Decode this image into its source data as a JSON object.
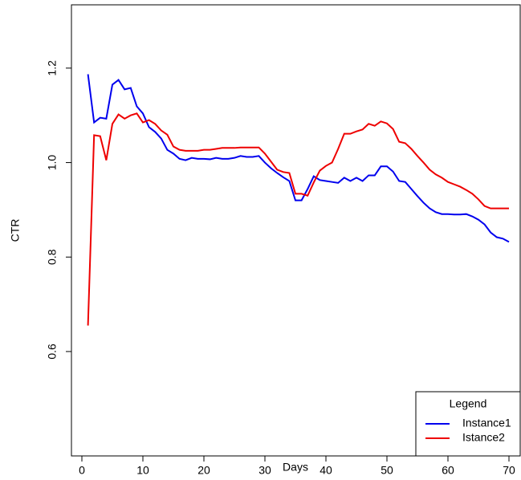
{
  "chart_data": {
    "type": "line",
    "xlabel": "Days",
    "ylabel": "CTR",
    "x": [
      1,
      2,
      3,
      4,
      5,
      6,
      7,
      8,
      9,
      10,
      11,
      12,
      13,
      14,
      15,
      16,
      17,
      18,
      19,
      20,
      21,
      22,
      23,
      24,
      25,
      26,
      27,
      28,
      29,
      30,
      31,
      32,
      33,
      34,
      35,
      36,
      37,
      38,
      39,
      40,
      41,
      42,
      43,
      44,
      45,
      46,
      47,
      48,
      49,
      50,
      51,
      52,
      53,
      54,
      55,
      56,
      57,
      58,
      59,
      60,
      61,
      62,
      63,
      64,
      65,
      66,
      67,
      68,
      69,
      70
    ],
    "series": [
      {
        "name": "Instance1",
        "color": "#0000ee",
        "values": [
          1.187,
          1.085,
          1.095,
          1.093,
          1.165,
          1.175,
          1.155,
          1.158,
          1.119,
          1.104,
          1.075,
          1.065,
          1.051,
          1.027,
          1.019,
          1.008,
          1.005,
          1.01,
          1.008,
          1.008,
          1.007,
          1.01,
          1.008,
          1.008,
          1.01,
          1.014,
          1.012,
          1.012,
          1.014,
          1.0,
          0.988,
          0.978,
          0.969,
          0.961,
          0.92,
          0.92,
          0.944,
          0.971,
          0.963,
          0.961,
          0.959,
          0.957,
          0.968,
          0.961,
          0.968,
          0.961,
          0.973,
          0.973,
          0.992,
          0.992,
          0.981,
          0.961,
          0.959,
          0.944,
          0.929,
          0.915,
          0.903,
          0.895,
          0.891,
          0.891,
          0.89,
          0.89,
          0.891,
          0.886,
          0.879,
          0.869,
          0.852,
          0.842,
          0.839,
          0.832
        ]
      },
      {
        "name": "Istance2",
        "color": "#ee0000",
        "values": [
          0.655,
          1.058,
          1.056,
          1.005,
          1.082,
          1.102,
          1.093,
          1.1,
          1.104,
          1.085,
          1.09,
          1.082,
          1.068,
          1.059,
          1.034,
          1.027,
          1.025,
          1.025,
          1.025,
          1.027,
          1.027,
          1.029,
          1.031,
          1.031,
          1.031,
          1.032,
          1.032,
          1.032,
          1.032,
          1.019,
          1.002,
          0.985,
          0.98,
          0.978,
          0.934,
          0.934,
          0.93,
          0.958,
          0.983,
          0.993,
          1.0,
          1.029,
          1.061,
          1.061,
          1.066,
          1.07,
          1.082,
          1.078,
          1.087,
          1.083,
          1.071,
          1.044,
          1.041,
          1.029,
          1.014,
          1.0,
          0.985,
          0.975,
          0.968,
          0.959,
          0.954,
          0.949,
          0.942,
          0.934,
          0.922,
          0.908,
          0.903,
          0.903,
          0.903,
          0.903
        ]
      }
    ],
    "xlim": [
      -1.71,
      71.84
    ],
    "ylim": [
      0.379,
      1.334
    ],
    "xticks": [
      0,
      10,
      20,
      30,
      40,
      50,
      60,
      70
    ],
    "yticks": [
      0.6,
      0.8,
      {
        "value": 1,
        "label": "1.0"
      },
      1.2
    ],
    "legend_title": "Legend",
    "legend_position": "bottom-right"
  }
}
